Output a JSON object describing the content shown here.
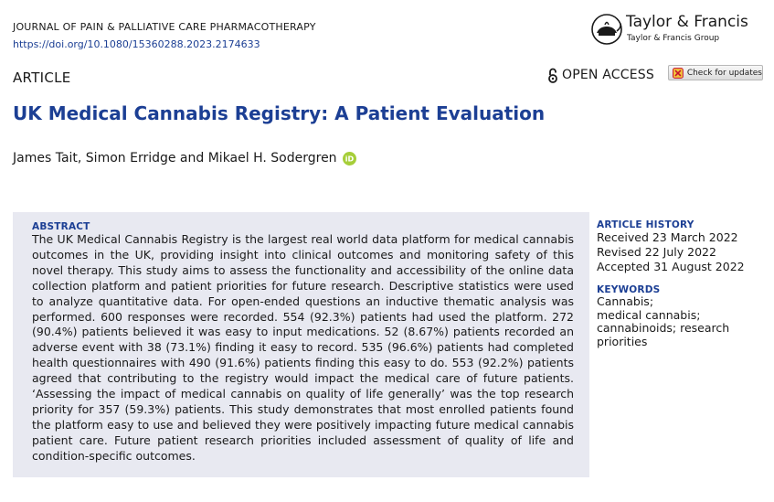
{
  "header": {
    "journal": "JOURNAL OF PAIN & PALLIATIVE CARE PHARMACOTHERAPY",
    "doi": "https://doi.org/10.1080/15360288.2023.2174633"
  },
  "publisher": {
    "name": "Taylor & Francis",
    "group": "Taylor & Francis Group",
    "logo_icon": "teapot-lamp-icon"
  },
  "article_type": "ARTICLE",
  "open_access": {
    "label": "OPEN ACCESS",
    "icon": "open-lock-icon"
  },
  "check_updates": {
    "label": "Check for updates",
    "icon": "crossmark-icon"
  },
  "title": "UK Medical Cannabis Registry: A Patient Evaluation",
  "authors": "James Tait, Simon Erridge and Mikael H. Sodergren",
  "abstract": {
    "heading": "ABSTRACT",
    "text": "The UK Medical Cannabis Registry is the largest real world data platform for medical cannabis outcomes in the UK, providing insight into clinical outcomes and monitoring safety of this novel therapy. This study aims to assess the functionality and accessibility of the online data collection platform and patient priorities for future research. Descriptive statistics were used to analyze quantitative data. For open-ended questions an inductive thematic analysis was performed. 600 responses were recorded. 554 (92.3%) patients had used the platform. 272 (90.4%) patients believed it was easy to input medications. 52 (8.67%) patients recorded an adverse event with 38 (73.1%) finding it easy to record. 535 (96.6%) patients had completed health questionnaires with 490 (91.6%) patients finding this easy to do. 553 (92.2%) patients agreed that contributing to the registry would impact the medical care of future patients. ‘Assessing the impact of medical cannabis on quality of life generally’ was the top research priority for 357 (59.3%) patients. This study demonstrates that most enrolled patients found the platform easy to use and believed they were positively impacting future medical cannabis patient care. Future patient research priorities included assessment of quality of life and condition-specific outcomes."
  },
  "article_history": {
    "heading": "ARTICLE HISTORY",
    "received": "Received 23 March 2022",
    "revised": "Revised 22 July 2022",
    "accepted": "Accepted 31 August 2022"
  },
  "keywords": {
    "heading": "KEYWORDS",
    "items": [
      "Cannabis;",
      "medical cannabis;",
      "cannabinoids; research",
      "priorities"
    ]
  },
  "colors": {
    "accent": "#1c3f94",
    "abstract_bg": "#e8e9f1",
    "orcid": "#a6ce39"
  }
}
